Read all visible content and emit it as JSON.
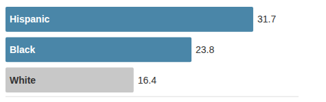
{
  "chart_data": {
    "type": "bar",
    "orientation": "horizontal",
    "categories": [
      "Hispanic",
      "Black",
      "White"
    ],
    "values": [
      31.7,
      23.8,
      16.4
    ],
    "colors": [
      "#4a86a8",
      "#4a86a8",
      "#c8c8c8"
    ],
    "xlim": [
      0,
      37.5
    ],
    "data_labels": true,
    "tick_labels": false,
    "grid": false
  }
}
